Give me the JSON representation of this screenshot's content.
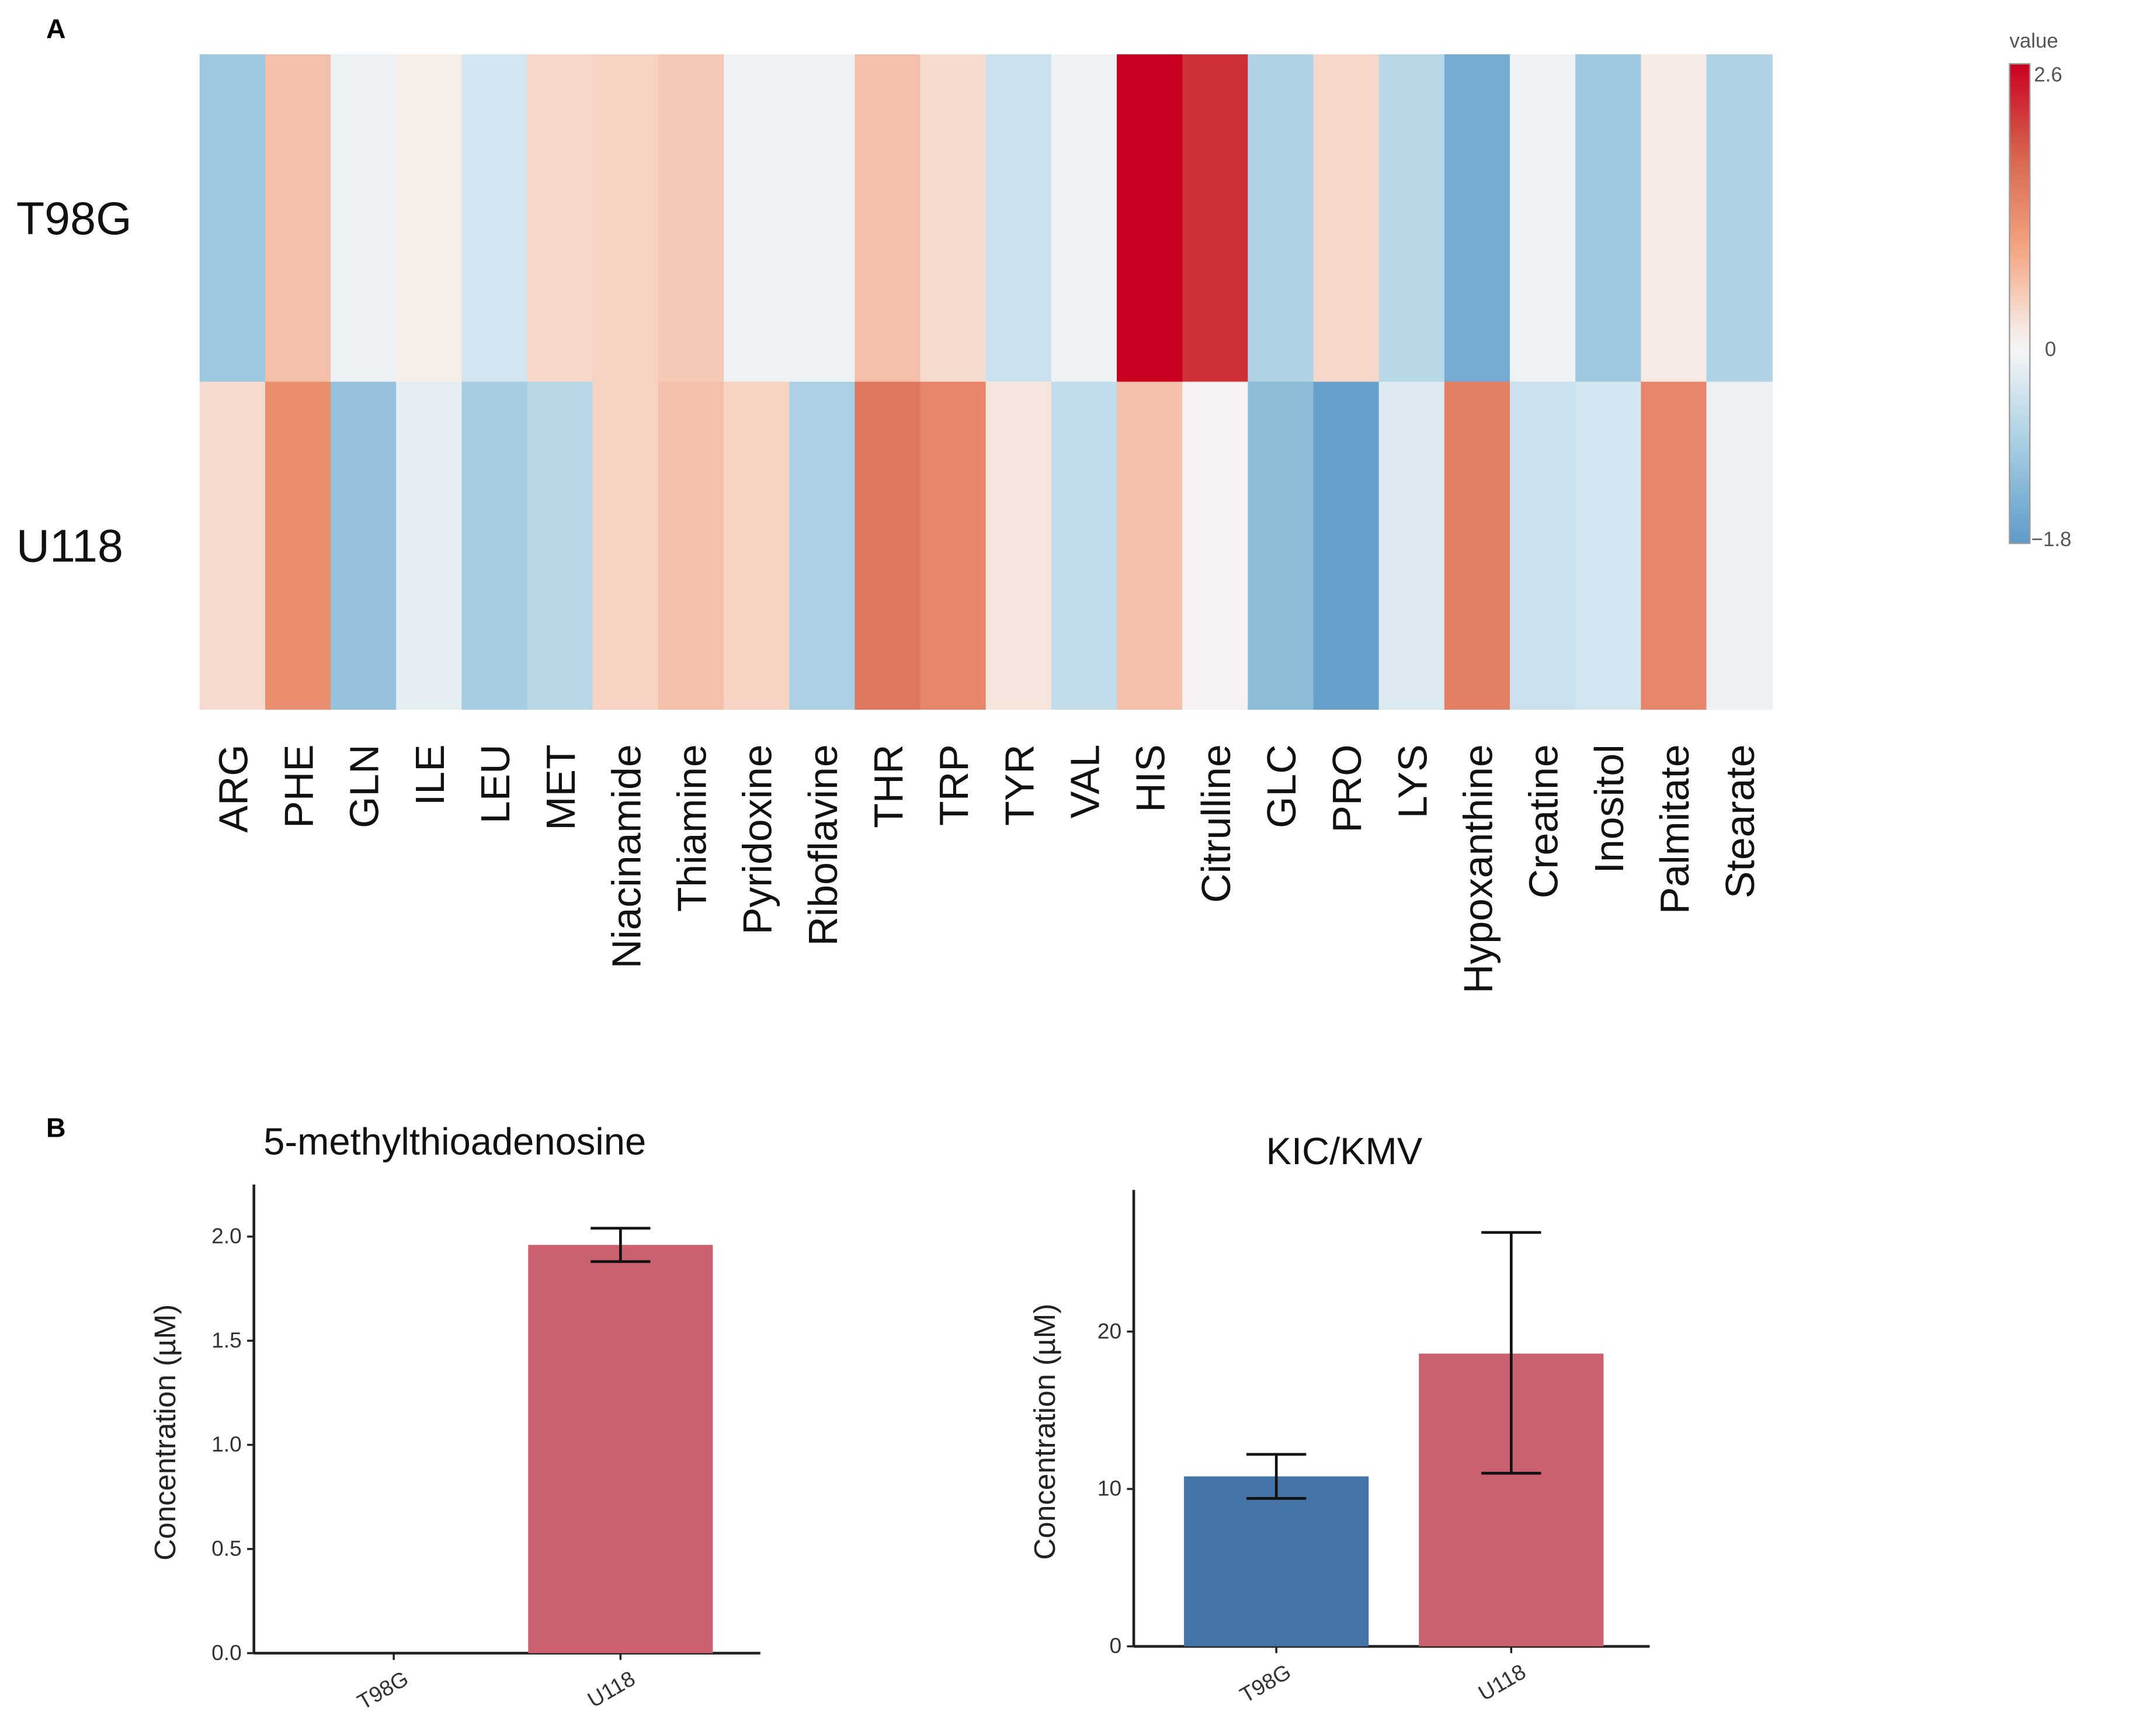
{
  "chart_data": [
    {
      "type": "heatmap",
      "panel_label": "A",
      "rows": [
        "T98G",
        "U118"
      ],
      "columns": [
        "ARG",
        "PHE",
        "GLN",
        "ILE",
        "LEU",
        "MET",
        "Niacinamide",
        "Thiamine",
        "Pyridoxine",
        "Riboflavine",
        "THR",
        "TRP",
        "TYR",
        "VAL",
        "HIS",
        "Citrulline",
        "GLC",
        "PRO",
        "LYS",
        "Hypoxanthine",
        "Creatine",
        "Inositol",
        "Palmitate",
        "Stearate"
      ],
      "values": [
        [
          -1.0,
          0.6,
          -0.15,
          0.1,
          -0.4,
          0.35,
          0.4,
          0.5,
          -0.1,
          -0.1,
          0.6,
          0.3,
          -0.5,
          -0.1,
          2.6,
          2.2,
          -0.8,
          0.35,
          -0.7,
          -1.5,
          -0.1,
          -1.0,
          0.15,
          -0.8
        ],
        [
          0.3,
          1.2,
          -1.1,
          -0.2,
          -0.9,
          -0.7,
          0.4,
          0.6,
          0.4,
          -0.85,
          1.5,
          1.3,
          0.2,
          -0.6,
          0.6,
          0.05,
          -1.2,
          -1.7,
          -0.3,
          1.4,
          -0.5,
          -0.4,
          1.3,
          -0.15
        ]
      ],
      "colorbar": {
        "title": "value",
        "min": -1.8,
        "mid": 0,
        "max": 2.6,
        "tick_labels": [
          "2.6",
          "0",
          "−1.8"
        ]
      },
      "colors": {
        "neg": "#5f9ac8",
        "mid": "#f7f7f7",
        "pos": "#ca0020"
      }
    },
    {
      "type": "bar",
      "panel_label": "B",
      "title": "5-methylthioadenosine",
      "categories": [
        "T98G",
        "U118"
      ],
      "values": [
        0,
        1.96
      ],
      "error_low": [
        0,
        1.88
      ],
      "error_high": [
        0,
        2.04
      ],
      "ylabel": "Concentration (µM)",
      "ylim": [
        0,
        2.25
      ],
      "yticks": [
        0,
        0.5,
        1.0,
        1.5,
        2.0
      ],
      "ytick_labels": [
        "0.0",
        "0.5",
        "1.0",
        "1.5",
        "2.0"
      ],
      "colors": [
        "#4575a8",
        "#cb6170"
      ]
    },
    {
      "type": "bar",
      "title": "KIC/KMV",
      "categories": [
        "T98G",
        "U118"
      ],
      "values": [
        10.8,
        18.6
      ],
      "error_low": [
        9.4,
        11.0
      ],
      "error_high": [
        12.2,
        26.3
      ],
      "ylabel": "Concentration (µM)",
      "ylim": [
        0,
        29
      ],
      "yticks": [
        0,
        10,
        20
      ],
      "ytick_labels": [
        "0",
        "10",
        "20"
      ],
      "colors": [
        "#4575a8",
        "#cb6170"
      ]
    }
  ]
}
